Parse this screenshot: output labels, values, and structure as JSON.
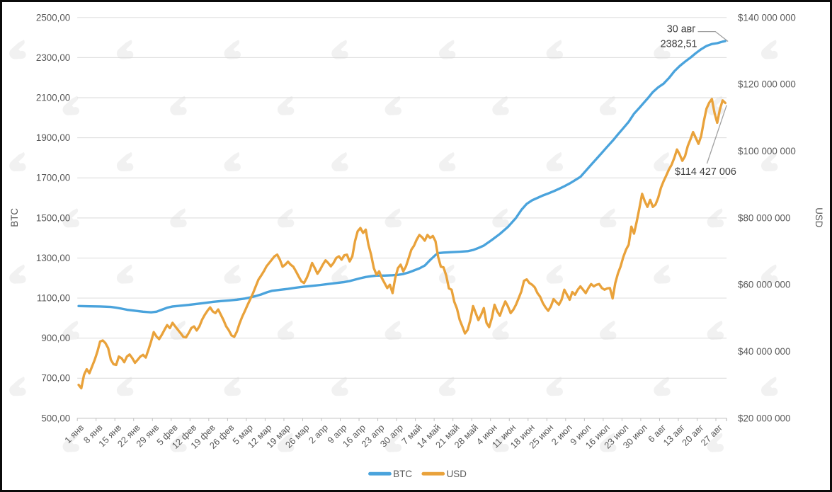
{
  "chart_data": {
    "type": "line",
    "title": "",
    "grid": true,
    "legend_position": "bottom-center",
    "x_axis": {
      "unit": "day",
      "days": 242,
      "start_label": "1 янв",
      "end_label_annotated": "30 авг",
      "tick_labels": [
        "1 янв",
        "8 янв",
        "15 янв",
        "22 янв",
        "29 янв",
        "5 фев",
        "12 фев",
        "19 фев",
        "26 фев",
        "5 мар",
        "12 мар",
        "19 мар",
        "26 мар",
        "2 апр",
        "9 апр",
        "16 апр",
        "23 апр",
        "30 апр",
        "7 май",
        "14 май",
        "21 май",
        "28 май",
        "4 июн",
        "11 июн",
        "18 июн",
        "25 июн",
        "2 июл",
        "9 июл",
        "16 июл",
        "23 июл",
        "30 июл",
        "6 авг",
        "13 авг",
        "20 авг",
        "27 авг"
      ]
    },
    "left_axis": {
      "title": "BTC",
      "min": 500,
      "max": 2500,
      "step": 200,
      "tick_labels": [
        "2500,00",
        "2300,00",
        "2100,00",
        "1900,00",
        "1700,00",
        "1500,00",
        "1300,00",
        "1100,00",
        "900,00",
        "700,00",
        "500,00"
      ]
    },
    "right_axis": {
      "title": "USD",
      "min": 20000000,
      "max": 140000000,
      "step": 20000000,
      "tick_labels": [
        "$140 000 000",
        "$120 000 000",
        "$100 000 000",
        "$80 000 000",
        "$60 000 000",
        "$40 000 000",
        "$20 000 000"
      ]
    },
    "series": [
      {
        "name": "BTC",
        "axis": "left",
        "color": "#4AA3DC",
        "points": [
          [
            0,
            1060
          ],
          [
            4,
            1059
          ],
          [
            8,
            1058
          ],
          [
            12,
            1056
          ],
          [
            14,
            1052
          ],
          [
            16,
            1047
          ],
          [
            18,
            1042
          ],
          [
            21,
            1037
          ],
          [
            24,
            1032
          ],
          [
            27,
            1029
          ],
          [
            29,
            1032
          ],
          [
            31,
            1042
          ],
          [
            33,
            1052
          ],
          [
            35,
            1058
          ],
          [
            38,
            1062
          ],
          [
            41,
            1066
          ],
          [
            44,
            1071
          ],
          [
            47,
            1076
          ],
          [
            50,
            1081
          ],
          [
            53,
            1085
          ],
          [
            56,
            1088
          ],
          [
            59,
            1092
          ],
          [
            62,
            1098
          ],
          [
            64,
            1103
          ],
          [
            66,
            1110
          ],
          [
            68,
            1118
          ],
          [
            70,
            1128
          ],
          [
            72,
            1136
          ],
          [
            75,
            1141
          ],
          [
            78,
            1146
          ],
          [
            81,
            1152
          ],
          [
            84,
            1157
          ],
          [
            87,
            1161
          ],
          [
            90,
            1165
          ],
          [
            93,
            1170
          ],
          [
            96,
            1175
          ],
          [
            99,
            1180
          ],
          [
            101,
            1185
          ],
          [
            103,
            1192
          ],
          [
            105,
            1199
          ],
          [
            107,
            1205
          ],
          [
            109,
            1209
          ],
          [
            111,
            1212
          ],
          [
            114,
            1212
          ],
          [
            117,
            1214
          ],
          [
            119,
            1216
          ],
          [
            121,
            1220
          ],
          [
            123,
            1228
          ],
          [
            125,
            1238
          ],
          [
            127,
            1248
          ],
          [
            129,
            1262
          ],
          [
            131,
            1290
          ],
          [
            133,
            1315
          ],
          [
            134,
            1324
          ],
          [
            136,
            1327
          ],
          [
            139,
            1329
          ],
          [
            142,
            1331
          ],
          [
            145,
            1334
          ],
          [
            147,
            1340
          ],
          [
            149,
            1350
          ],
          [
            151,
            1362
          ],
          [
            154,
            1390
          ],
          [
            157,
            1420
          ],
          [
            160,
            1455
          ],
          [
            163,
            1500
          ],
          [
            165,
            1540
          ],
          [
            167,
            1570
          ],
          [
            169,
            1588
          ],
          [
            171,
            1600
          ],
          [
            173,
            1612
          ],
          [
            175,
            1622
          ],
          [
            177,
            1633
          ],
          [
            179,
            1645
          ],
          [
            181,
            1658
          ],
          [
            183,
            1672
          ],
          [
            185,
            1688
          ],
          [
            187,
            1705
          ],
          [
            189,
            1735
          ],
          [
            191,
            1765
          ],
          [
            193,
            1795
          ],
          [
            195,
            1825
          ],
          [
            197,
            1855
          ],
          [
            199,
            1885
          ],
          [
            201,
            1917
          ],
          [
            203,
            1948
          ],
          [
            205,
            1980
          ],
          [
            207,
            2020
          ],
          [
            209,
            2050
          ],
          [
            211,
            2080
          ],
          [
            212,
            2095
          ],
          [
            214,
            2128
          ],
          [
            216,
            2152
          ],
          [
            218,
            2170
          ],
          [
            220,
            2198
          ],
          [
            222,
            2232
          ],
          [
            224,
            2258
          ],
          [
            226,
            2280
          ],
          [
            228,
            2300
          ],
          [
            230,
            2322
          ],
          [
            232,
            2342
          ],
          [
            234,
            2358
          ],
          [
            236,
            2368
          ],
          [
            238,
            2372
          ],
          [
            240,
            2380
          ],
          [
            241,
            2382.51
          ]
        ]
      },
      {
        "name": "USD",
        "axis": "right",
        "color": "#E9A23B",
        "unit": "millions USD",
        "values_by_day": [
          30,
          29,
          33,
          34.7,
          33.5,
          35.5,
          37.5,
          40,
          43,
          43.3,
          42.5,
          41,
          37.5,
          36.2,
          36,
          38.5,
          38,
          36.8,
          38.5,
          39.1,
          38,
          36.6,
          37.5,
          38.5,
          39,
          38.2,
          40.5,
          43,
          45.8,
          44.5,
          43.7,
          45,
          46.5,
          47.9,
          47,
          48.6,
          47.5,
          46.5,
          45.5,
          44.4,
          44.2,
          45.5,
          47,
          47.5,
          46.3,
          47.5,
          49.5,
          51,
          52.2,
          53.2,
          52,
          51.5,
          52.6,
          51,
          49.4,
          47.5,
          46.3,
          44.8,
          44.4,
          46,
          48.5,
          50.5,
          52.2,
          54,
          55.7,
          57.5,
          59.5,
          61.5,
          62.7,
          64,
          65.5,
          66.5,
          67.5,
          68.5,
          69,
          67.5,
          65.4,
          66,
          66.9,
          66,
          65.4,
          64,
          62.5,
          61,
          60.5,
          62,
          64,
          66.5,
          65,
          63.3,
          64.5,
          66,
          67.3,
          66.5,
          65.5,
          66.5,
          68,
          68.5,
          67.5,
          68.8,
          69,
          67,
          68.5,
          73,
          76,
          77,
          75.5,
          76.5,
          72,
          69,
          65,
          63,
          64,
          62,
          60.5,
          59,
          60,
          57.5,
          62,
          65,
          66,
          64,
          65.5,
          68,
          70.5,
          71.7,
          73.5,
          74.9,
          74.2,
          73.2,
          74.9,
          74,
          74.6,
          73,
          68.3,
          65.4,
          65.2,
          62.7,
          58.9,
          58.5,
          54.9,
          52.8,
          49.5,
          47.5,
          45.4,
          46.5,
          49.5,
          53.6,
          51.5,
          49.4,
          51,
          53,
          48.6,
          47.3,
          50,
          54,
          52,
          50.7,
          53,
          55,
          53.5,
          51.5,
          52.5,
          54,
          56,
          58,
          61.2,
          61.6,
          60.5,
          60,
          59.2,
          57.5,
          56.4,
          54.5,
          53.2,
          52.2,
          53.5,
          55.7,
          54.8,
          54,
          55.5,
          58.5,
          57,
          55.5,
          57.8,
          57,
          58.5,
          59.5,
          58.5,
          57.5,
          59,
          60.2,
          59.5,
          60,
          60.2,
          59,
          58.5,
          58.9,
          59,
          55.9,
          60.5,
          63.4,
          65.5,
          68.3,
          70.5,
          72,
          77.4,
          75.3,
          79,
          83,
          87.2,
          85,
          83.3,
          85.4,
          83.3,
          84,
          86,
          89,
          91,
          92.7,
          94.5,
          95.9,
          98,
          100.5,
          99,
          97.1,
          98.5,
          101.5,
          103.5,
          105.7,
          104,
          102.2,
          104.5,
          108.9,
          112.7,
          114.5,
          115.6,
          111.4,
          108.5,
          112.5,
          115.2,
          114.427
        ]
      }
    ],
    "annotations": {
      "btc_date": "30 авг",
      "btc_value": "2382,51",
      "usd_value": "$114 427 006"
    }
  },
  "legend": {
    "items": [
      {
        "label": "BTC",
        "color": "#4AA3DC"
      },
      {
        "label": "USD",
        "color": "#E9A23B"
      }
    ]
  },
  "colors": {
    "gridline": "#D9D9D9",
    "axis_line": "#BFBFBF",
    "leader_line": "#A0A0A0",
    "watermark": "#F1F1F1",
    "tick_text": "#595959"
  }
}
